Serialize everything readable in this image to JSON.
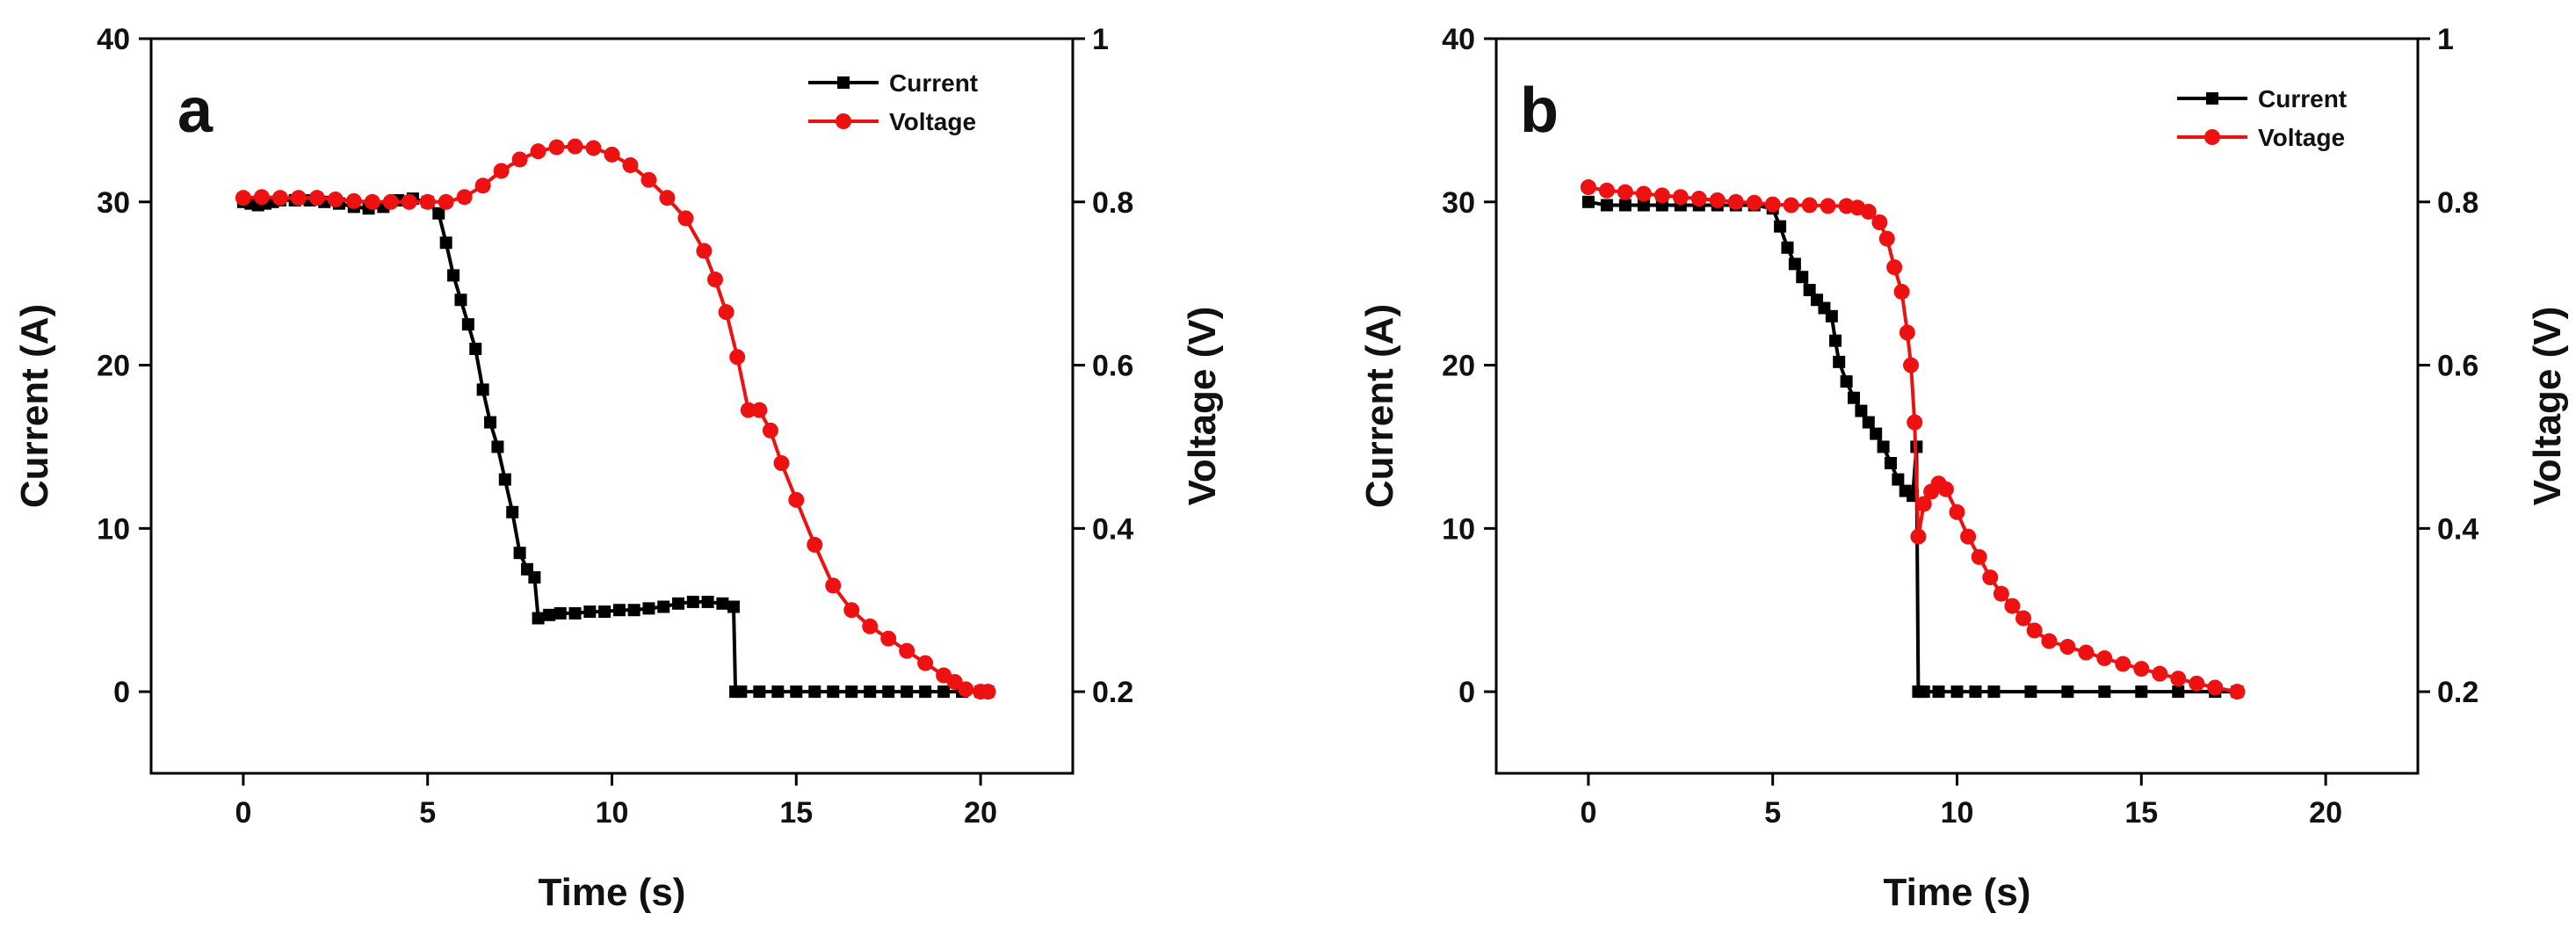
{
  "chart_data": [
    {
      "panel": "a",
      "type": "line",
      "xlabel": "Time (s)",
      "ylabel_left": "Current (A)",
      "ylabel_right": "Voltage (V)",
      "xlim": [
        -2.5,
        22.5
      ],
      "ylim_left": [
        -5,
        40
      ],
      "ylim_right": [
        0.1,
        1.0
      ],
      "xticks": [
        0,
        5,
        10,
        15,
        20
      ],
      "yticks_left": [
        0,
        10,
        20,
        30,
        40
      ],
      "yticks_right": [
        0.2,
        0.4,
        0.6,
        0.8,
        1.0
      ],
      "legend_position": "top-right",
      "series": [
        {
          "name": "Current",
          "axis": "left",
          "color": "#000000",
          "marker": "square",
          "x": [
            0,
            0.2,
            0.4,
            0.6,
            0.8,
            1.0,
            1.4,
            1.8,
            2.2,
            2.6,
            3.0,
            3.4,
            3.8,
            4.2,
            4.6,
            5.0,
            5.3,
            5.5,
            5.7,
            5.9,
            6.1,
            6.3,
            6.5,
            6.7,
            6.9,
            7.1,
            7.3,
            7.5,
            7.7,
            7.9,
            8.0,
            8.3,
            8.6,
            9.0,
            9.4,
            9.8,
            10.2,
            10.6,
            11.0,
            11.4,
            11.8,
            12.2,
            12.6,
            13.0,
            13.3,
            13.35,
            13.5,
            14,
            14.5,
            15,
            15.5,
            16,
            16.5,
            17,
            17.5,
            18,
            18.5,
            19,
            19.5,
            20,
            20.2
          ],
          "values": [
            30,
            29.9,
            29.8,
            29.9,
            30,
            30.1,
            30.1,
            30.1,
            30,
            29.9,
            29.7,
            29.6,
            29.7,
            30.1,
            30.2,
            30,
            29.3,
            27.5,
            25.5,
            24,
            22.5,
            21,
            18.5,
            16.5,
            15,
            13,
            11,
            8.5,
            7.5,
            7,
            4.5,
            4.7,
            4.8,
            4.8,
            4.9,
            4.9,
            5.0,
            5.0,
            5.1,
            5.2,
            5.4,
            5.5,
            5.5,
            5.4,
            5.2,
            0,
            0,
            0,
            0,
            0,
            0,
            0,
            0,
            0,
            0,
            0,
            0,
            0,
            0,
            0,
            0
          ]
        },
        {
          "name": "Voltage",
          "axis": "right",
          "color": "#ee1111",
          "marker": "circle",
          "x": [
            0,
            0.5,
            1,
            1.5,
            2,
            2.5,
            3,
            3.5,
            4,
            4.5,
            5,
            5.5,
            6,
            6.5,
            7,
            7.5,
            8,
            8.5,
            9,
            9.5,
            10,
            10.5,
            11,
            11.5,
            12,
            12.5,
            12.8,
            13.1,
            13.4,
            13.7,
            14,
            14.3,
            14.6,
            15,
            15.5,
            16,
            16.5,
            17,
            17.5,
            18,
            18.5,
            19,
            19.3,
            19.6,
            20,
            20.2
          ],
          "values": [
            0.805,
            0.806,
            0.805,
            0.805,
            0.805,
            0.803,
            0.801,
            0.8,
            0.8,
            0.8,
            0.8,
            0.8,
            0.806,
            0.82,
            0.838,
            0.852,
            0.862,
            0.867,
            0.868,
            0.866,
            0.858,
            0.845,
            0.827,
            0.805,
            0.78,
            0.74,
            0.705,
            0.665,
            0.61,
            0.545,
            0.545,
            0.52,
            0.48,
            0.435,
            0.38,
            0.33,
            0.3,
            0.28,
            0.265,
            0.25,
            0.235,
            0.22,
            0.212,
            0.203,
            0.2,
            0.2
          ]
        }
      ]
    },
    {
      "panel": "b",
      "type": "line",
      "xlabel": "Time (s)",
      "ylabel_left": "Current (A)",
      "ylabel_right": "Voltage (V)",
      "xlim": [
        -2.5,
        22.5
      ],
      "ylim_left": [
        -5,
        40
      ],
      "ylim_right": [
        0.1,
        1.0
      ],
      "xticks": [
        0,
        5,
        10,
        15,
        20
      ],
      "yticks_left": [
        0,
        10,
        20,
        30,
        40
      ],
      "yticks_right": [
        0.2,
        0.4,
        0.6,
        0.8,
        1.0
      ],
      "legend_position": "top-right",
      "series": [
        {
          "name": "Current",
          "axis": "left",
          "color": "#000000",
          "marker": "square",
          "x": [
            0,
            0.5,
            1,
            1.5,
            2,
            2.5,
            3,
            3.5,
            4,
            4.5,
            5,
            5.2,
            5.4,
            5.6,
            5.8,
            6.0,
            6.2,
            6.4,
            6.6,
            6.7,
            6.8,
            7.0,
            7.2,
            7.4,
            7.6,
            7.8,
            8.0,
            8.2,
            8.4,
            8.6,
            8.8,
            8.9,
            8.95,
            9.1,
            9.5,
            10,
            10.5,
            11,
            12,
            13,
            14,
            15,
            16,
            17,
            17.6
          ],
          "values": [
            30,
            29.8,
            29.8,
            29.8,
            29.8,
            29.8,
            29.8,
            29.8,
            29.8,
            29.8,
            29.6,
            28.5,
            27.2,
            26.2,
            25.4,
            24.6,
            24.0,
            23.5,
            23.0,
            21.5,
            20.2,
            19.0,
            18.0,
            17.2,
            16.5,
            15.8,
            15.0,
            14.0,
            13.0,
            12.3,
            12.0,
            15.0,
            0,
            0,
            0,
            0,
            0,
            0,
            0,
            0,
            0,
            0,
            0,
            0,
            0
          ]
        },
        {
          "name": "Voltage",
          "axis": "right",
          "color": "#ee1111",
          "marker": "circle",
          "x": [
            0,
            0.5,
            1,
            1.5,
            2,
            2.5,
            3,
            3.5,
            4,
            4.5,
            5,
            5.5,
            6,
            6.5,
            7,
            7.3,
            7.6,
            7.9,
            8.1,
            8.3,
            8.5,
            8.65,
            8.75,
            8.85,
            8.95,
            9.1,
            9.3,
            9.5,
            9.7,
            10,
            10.3,
            10.6,
            10.9,
            11.2,
            11.5,
            11.8,
            12.1,
            12.5,
            13,
            13.5,
            14,
            14.5,
            15,
            15.5,
            16,
            16.5,
            17,
            17.6
          ],
          "values": [
            0.818,
            0.814,
            0.812,
            0.81,
            0.808,
            0.806,
            0.804,
            0.802,
            0.8,
            0.799,
            0.797,
            0.796,
            0.796,
            0.795,
            0.795,
            0.793,
            0.788,
            0.775,
            0.755,
            0.72,
            0.69,
            0.64,
            0.6,
            0.53,
            0.39,
            0.43,
            0.445,
            0.455,
            0.448,
            0.42,
            0.39,
            0.365,
            0.34,
            0.32,
            0.305,
            0.29,
            0.275,
            0.262,
            0.255,
            0.248,
            0.241,
            0.234,
            0.228,
            0.222,
            0.216,
            0.21,
            0.205,
            0.2
          ]
        }
      ]
    }
  ]
}
